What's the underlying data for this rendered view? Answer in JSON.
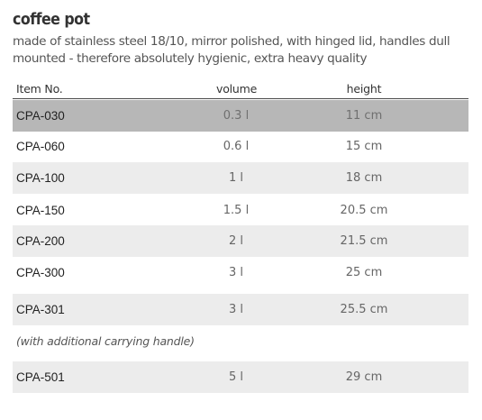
{
  "product": {
    "title": "coffee pot",
    "description_line1": "made of stainless steel 18/10, mirror polished, with hinged lid, handles dull",
    "description_line2": "mounted - therefore absolutely hygienic, extra heavy quality"
  },
  "table": {
    "headers": [
      "Item No.",
      "volume",
      "height"
    ],
    "rows": [
      {
        "item": "CPA-030",
        "volume": "0.3 l",
        "height": "11 cm"
      },
      {
        "item": "CPA-060",
        "volume": "0.6 l",
        "height": "15 cm"
      },
      {
        "item": "CPA-100",
        "volume": "1 l",
        "height": "18 cm"
      },
      {
        "item": "CPA-150",
        "volume": "1.5 l",
        "height": "20.5 cm"
      },
      {
        "item": "CPA-200",
        "volume": "2 l",
        "height": "21.5 cm"
      },
      {
        "item": "CPA-300",
        "volume": "3 l",
        "height": "25 cm"
      },
      {
        "item": "CPA-301",
        "volume": "3 l",
        "height": "25.5 cm"
      },
      {
        "item": "CPA-501",
        "volume": "5 l",
        "height": "29 cm"
      }
    ],
    "note": "(with additional carrying handle)"
  },
  "colors": {
    "selected_row": "#b7b7b7",
    "alternate_row": "#ececec",
    "text": "#333333"
  }
}
